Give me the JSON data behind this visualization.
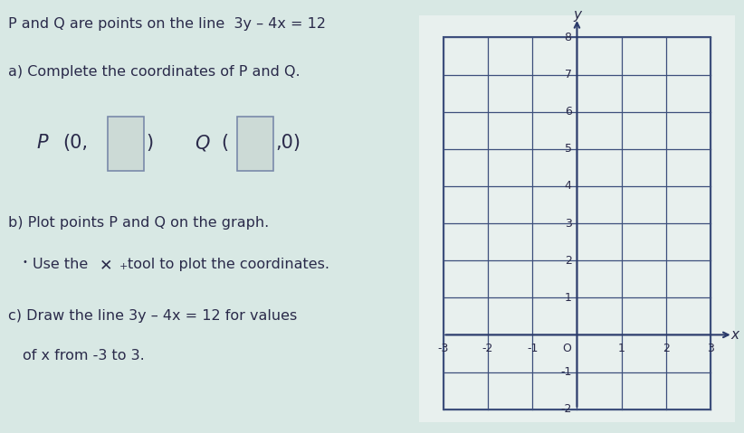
{
  "title_line1": "P and Q are points on the line  3y – 4x = 12",
  "part_a": "a) Complete the coordinates of P and Q.",
  "part_b_line1": "b) Plot points P and Q on the graph.",
  "part_b_line2_pre": "Use the ",
  "part_b_line2_post": "tool to plot the coordinates.",
  "part_c_line1": "c) Draw the line 3y – 4x = 12 for values",
  "part_c_line2": "of x from -3 to 3.",
  "P_label": "P",
  "P_pre": "(0,",
  "P_post": ")",
  "Q_label": "Q",
  "Q_pre": "(",
  "Q_post": ",0)",
  "x_min": -3,
  "x_max": 3,
  "y_min": -2,
  "y_max": 8,
  "grid_color": "#3d4f7c",
  "bg_color": "#d8e8e4",
  "graph_bg": "#e8f0ee",
  "text_color": "#2a2a4a",
  "axis_color": "#2a3a6a",
  "box_fill": "#ccdad6",
  "box_edge": "#7a8aaa"
}
